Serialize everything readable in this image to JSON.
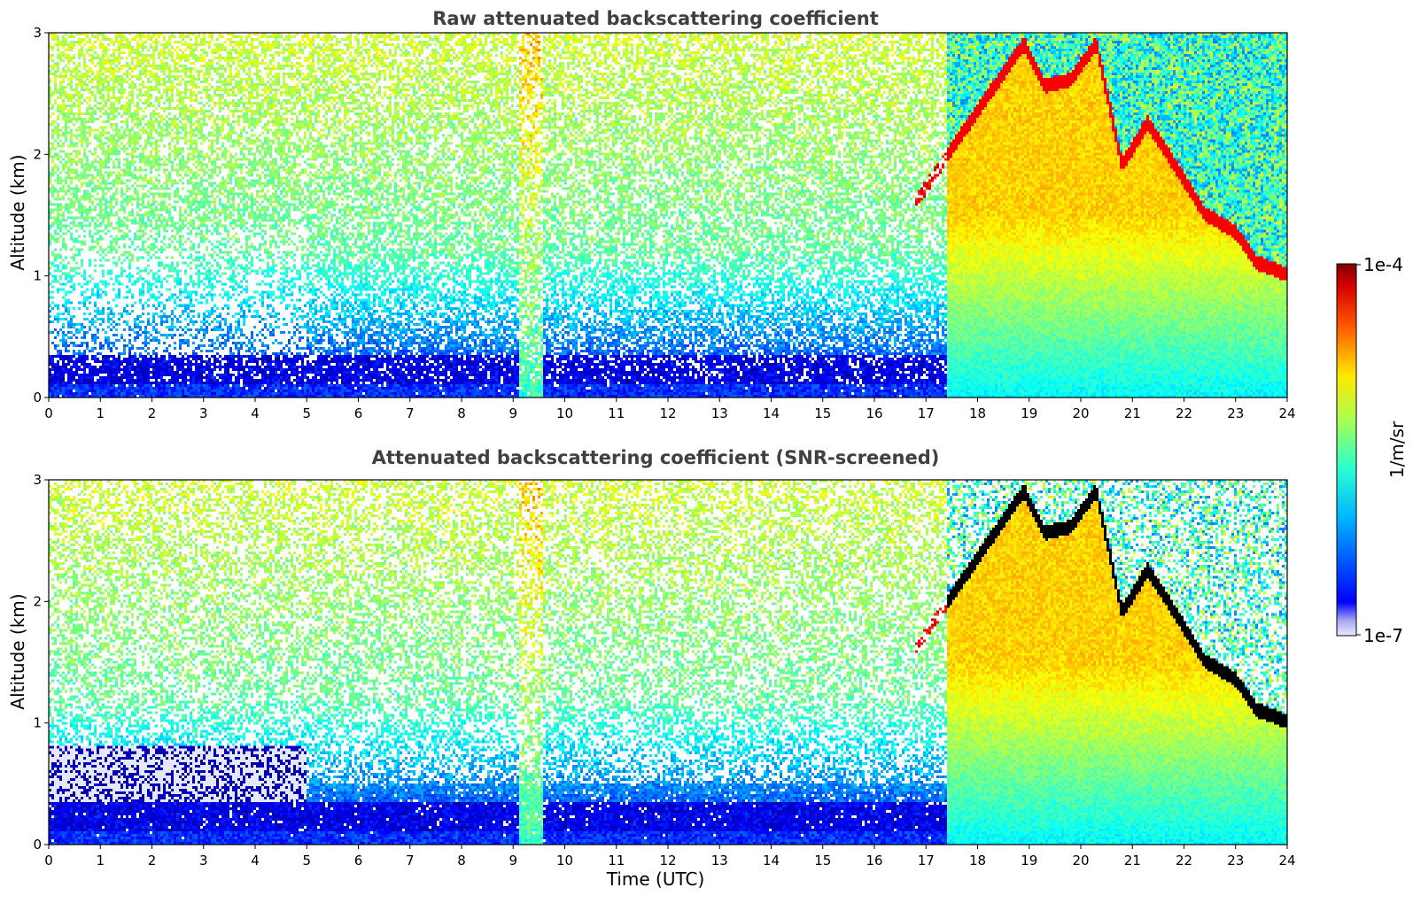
{
  "chart_data": [
    {
      "type": "heatmap",
      "title": "Raw attenuated backscattering coefficient",
      "ylabel": "Altitude (km)",
      "xlabel": "",
      "x_ticks": [
        "0",
        "1",
        "2",
        "3",
        "4",
        "5",
        "6",
        "7",
        "8",
        "9",
        "10",
        "11",
        "12",
        "13",
        "14",
        "15",
        "16",
        "17",
        "18",
        "19",
        "20",
        "21",
        "22",
        "23",
        "24"
      ],
      "y_ticks": [
        "0",
        "1",
        "2",
        "3"
      ],
      "xlim": [
        0,
        24
      ],
      "ylim": [
        0,
        3
      ],
      "screening": "none",
      "features": {
        "surface_layer_top_km": 0.35,
        "aerosol_column_hours": [
          9.1,
          9.6
        ],
        "cloud_period_hours": [
          17.4,
          24
        ],
        "cloud_layer_points": [
          [
            16.8,
            1.6
          ],
          [
            17.2,
            1.85
          ],
          [
            18.9,
            2.9
          ],
          [
            19.3,
            2.55
          ],
          [
            19.8,
            2.6
          ],
          [
            20.3,
            2.9
          ],
          [
            20.8,
            1.9
          ],
          [
            21.3,
            2.25
          ],
          [
            21.9,
            1.85
          ],
          [
            22.4,
            1.5
          ],
          [
            23.0,
            1.35
          ],
          [
            23.4,
            1.1
          ],
          [
            24.0,
            1.0
          ]
        ]
      }
    },
    {
      "type": "heatmap",
      "title": "Attenuated backscattering coefficient (SNR-screened)",
      "ylabel": "Altitude (km)",
      "xlabel": "Time (UTC)",
      "x_ticks": [
        "0",
        "1",
        "2",
        "3",
        "4",
        "5",
        "6",
        "7",
        "8",
        "9",
        "10",
        "11",
        "12",
        "13",
        "14",
        "15",
        "16",
        "17",
        "18",
        "19",
        "20",
        "21",
        "22",
        "23",
        "24"
      ],
      "y_ticks": [
        "0",
        "1",
        "2",
        "3"
      ],
      "xlim": [
        0,
        24
      ],
      "ylim": [
        0,
        3
      ],
      "screening": "SNR",
      "features": {
        "surface_layer_top_km": 0.35,
        "aerosol_column_hours": [
          9.1,
          9.6
        ],
        "cloud_period_hours": [
          17.4,
          24
        ],
        "cloud_layer_points": [
          [
            16.8,
            1.6
          ],
          [
            17.2,
            1.85
          ],
          [
            18.9,
            2.9
          ],
          [
            19.3,
            2.55
          ],
          [
            19.8,
            2.6
          ],
          [
            20.3,
            2.9
          ],
          [
            20.8,
            1.9
          ],
          [
            21.3,
            2.25
          ],
          [
            21.9,
            1.85
          ],
          [
            22.4,
            1.5
          ],
          [
            23.0,
            1.35
          ],
          [
            23.4,
            1.1
          ],
          [
            24.0,
            1.0
          ]
        ]
      }
    }
  ],
  "colorbar": {
    "label": "1/m/sr",
    "max_label": "1e-4",
    "min_label": "1e-7",
    "range": [
      1e-07,
      0.0001
    ],
    "scale": "log",
    "colormap": "jet"
  }
}
